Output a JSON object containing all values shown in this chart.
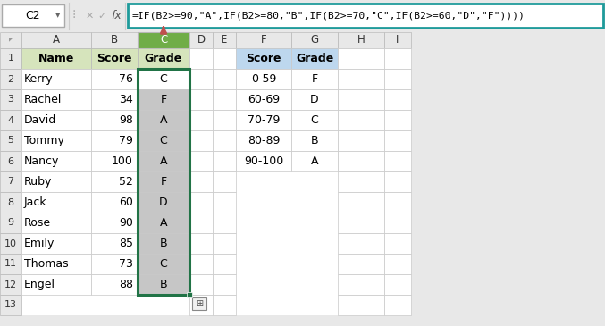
{
  "formula_bar_text": "=IF(B2>=90,\"A\",IF(B2>=80,\"B\",IF(B2>=70,\"C\",IF(B2>=60,\"D\",\"F\"))))",
  "cell_ref": "C2",
  "col_headers": [
    "A",
    "B",
    "C",
    "D",
    "E",
    "F",
    "G",
    "H",
    "I"
  ],
  "row_headers": [
    "1",
    "2",
    "3",
    "4",
    "5",
    "6",
    "7",
    "8",
    "9",
    "10",
    "11",
    "12",
    "13"
  ],
  "main_table": {
    "headers": [
      "Name",
      "Score",
      "Grade"
    ],
    "rows": [
      [
        "Kerry",
        76,
        "C"
      ],
      [
        "Rachel",
        34,
        "F"
      ],
      [
        "David",
        98,
        "A"
      ],
      [
        "Tommy",
        79,
        "C"
      ],
      [
        "Nancy",
        100,
        "A"
      ],
      [
        "Ruby",
        52,
        "F"
      ],
      [
        "Jack",
        60,
        "D"
      ],
      [
        "Rose",
        90,
        "A"
      ],
      [
        "Emily",
        85,
        "B"
      ],
      [
        "Thomas",
        73,
        "C"
      ],
      [
        "Engel",
        88,
        "B"
      ]
    ]
  },
  "ref_table": {
    "headers": [
      "Score",
      "Grade"
    ],
    "rows": [
      [
        "0-59",
        "F"
      ],
      [
        "60-69",
        "D"
      ],
      [
        "70-79",
        "C"
      ],
      [
        "80-89",
        "B"
      ],
      [
        "90-100",
        "A"
      ]
    ]
  },
  "colors": {
    "header_green": "#d6e4bc",
    "header_blue": "#bdd7ee",
    "grade_col_selected": "#c6c6c6",
    "grade_col_header_selected": "#70ad47",
    "formula_bar_border": "#1f9b9b",
    "cell_border": "#c0c0c0",
    "arrow_color": "#c0504d",
    "background": "#e8e8e8",
    "white": "#ffffff",
    "formula_bar_bg": "#ffffff",
    "name_box_bg": "#ffffff",
    "toolbar_bg": "#e8e8e8",
    "grid_bg": "#f2f2f2",
    "selected_green_border": "#217346"
  }
}
